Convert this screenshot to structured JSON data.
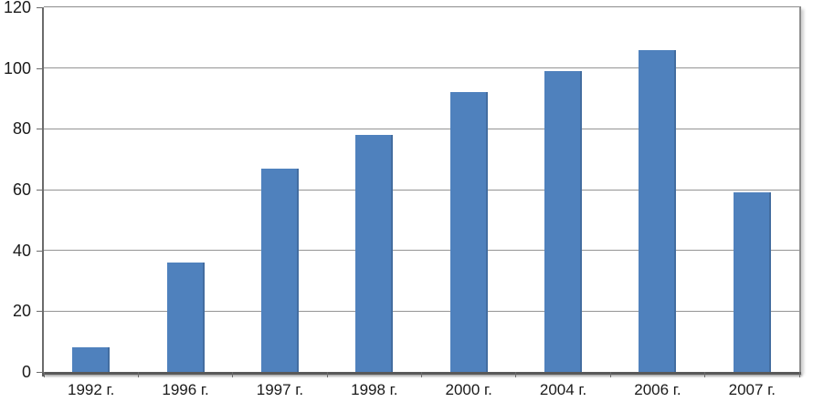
{
  "chart_data": {
    "type": "bar",
    "categories": [
      "1992 г.",
      "1996 г.",
      "1997 г.",
      "1998 г.",
      "2000 г.",
      "2004 г.",
      "2006 г.",
      "2007 г."
    ],
    "values": [
      8,
      36,
      67,
      78,
      92,
      99,
      106,
      59
    ],
    "y_ticks": [
      0,
      20,
      40,
      60,
      80,
      100,
      120
    ],
    "ylim": [
      0,
      120
    ],
    "grid": true,
    "legend": false,
    "bar_color": "#4f81bd",
    "gridline_color": "#949494",
    "axis_color": "#6b6b6b",
    "bottom_axis_color": "#595959",
    "text_color": "#1a1a1a"
  }
}
